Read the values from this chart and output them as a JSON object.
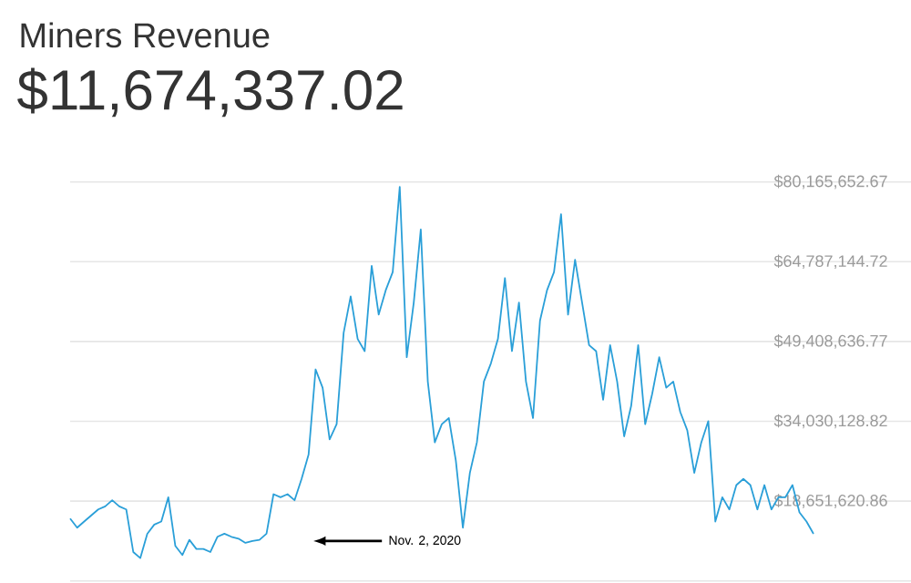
{
  "chart_data": {
    "type": "line",
    "title": "Miners Revenue",
    "subtitle": "$11,674,337.02",
    "categories": [
      null,
      null,
      null,
      null,
      null,
      null,
      null,
      null,
      null,
      null,
      null,
      null,
      null,
      null,
      null,
      null,
      null,
      null,
      null,
      null,
      null,
      null,
      null,
      null,
      null,
      null,
      null,
      null,
      null,
      null,
      null,
      null,
      null,
      null,
      null,
      null,
      null,
      null,
      null,
      null,
      null,
      null,
      null,
      null,
      null,
      null,
      null,
      null,
      null,
      null,
      null,
      null,
      null,
      null,
      null,
      null,
      null,
      null,
      null,
      null,
      null,
      null,
      null,
      null,
      null,
      null,
      null,
      null,
      null,
      null,
      null,
      null,
      null,
      null,
      null,
      null,
      null,
      null,
      null,
      null,
      null,
      null,
      null,
      null,
      null,
      null,
      null,
      null,
      null,
      null,
      null,
      null,
      null,
      null,
      null,
      null,
      null,
      null,
      null,
      null,
      null,
      null,
      null,
      null,
      null,
      null,
      null
    ],
    "series": [
      {
        "color": "#2a9fd8",
        "values": [
          15290000,
          13530000,
          14710000,
          15880000,
          17050000,
          17640000,
          18810000,
          17640000,
          17050000,
          8840000,
          7670000,
          12360000,
          14120000,
          14710000,
          19400000,
          10010000,
          8260000,
          11190000,
          9430000,
          9430000,
          8840000,
          11770000,
          12360000,
          11770000,
          11420000,
          10600000,
          10950000,
          11190000,
          12360000,
          19980000,
          19400000,
          19980000,
          18810000,
          22920000,
          27610000,
          44030000,
          40510000,
          30540000,
          33470000,
          51070000,
          58110000,
          49900000,
          47550000,
          63970000,
          54590000,
          59280000,
          62800000,
          79220000,
          46380000,
          56930000,
          71010000,
          41690000,
          29960000,
          33470000,
          34650000,
          26440000,
          13530000,
          24090000,
          29960000,
          41690000,
          45200000,
          49900000,
          61630000,
          47550000,
          56930000,
          41690000,
          34650000,
          53420000,
          59280000,
          62800000,
          73940000,
          54590000,
          65150000,
          56930000,
          48720000,
          47550000,
          38170000,
          48720000,
          41690000,
          31130000,
          37000000,
          48720000,
          33470000,
          39340000,
          46380000,
          40510000,
          41690000,
          35820000,
          32300000,
          24090000,
          29960000,
          34060000,
          14710000,
          19400000,
          17050000,
          21740000,
          22920000,
          21740000,
          17050000,
          21740000,
          17050000,
          19400000,
          19400000,
          21740000,
          16460000,
          14710000,
          12360000
        ]
      }
    ],
    "ylim": [
      3273112.91,
      80165652.67
    ],
    "yticks": [
      {
        "value": 18651620.86,
        "label": "$18,651,620.86"
      },
      {
        "value": 34030128.82,
        "label": "$34,030,128.82"
      },
      {
        "value": 49408636.77,
        "label": "$49,408,636.77"
      },
      {
        "value": 64787144.72,
        "label": "$64,787,144.72"
      },
      {
        "value": 80165652.67,
        "label": "$80,165,652.67"
      }
    ],
    "grid": "y",
    "tick_labels": "y",
    "annotations": [
      "Nov. 2, 2020"
    ]
  }
}
